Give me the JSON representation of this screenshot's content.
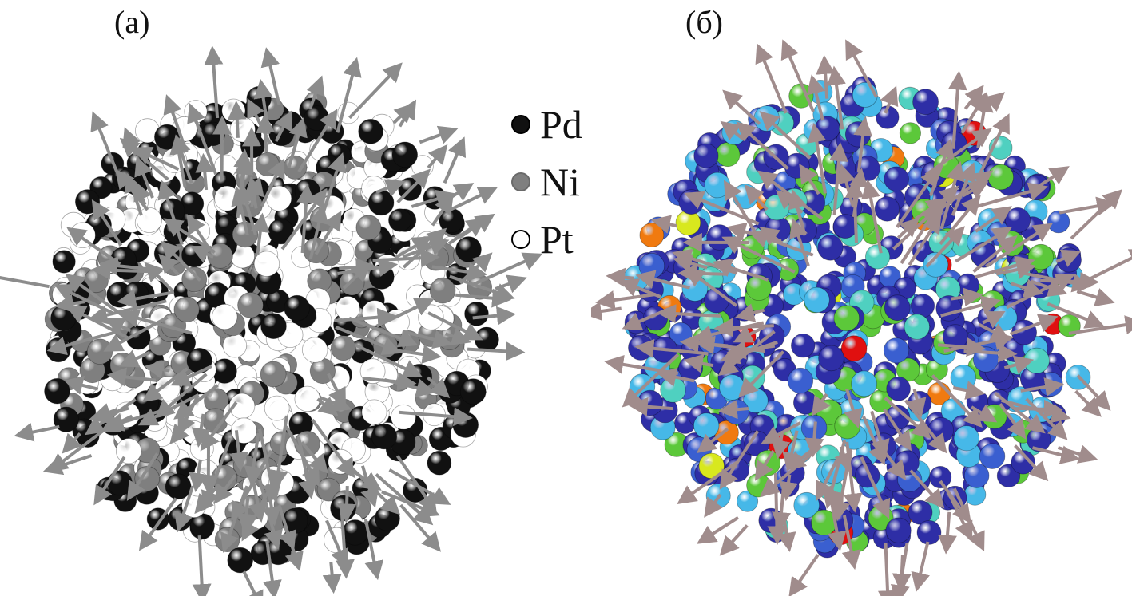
{
  "panels": [
    {
      "label": "(а)",
      "coloring": "element"
    },
    {
      "label": "(б)",
      "coloring": "value"
    }
  ],
  "legend": [
    {
      "label": "Pd",
      "color": "#111111",
      "border": "#000000"
    },
    {
      "label": "Ni",
      "color": "#7f7f7f",
      "border": "#6a6a6a"
    },
    {
      "label": "Pt",
      "color": "#ffffff",
      "border": "#000000"
    }
  ],
  "colors": {
    "arrow_a": "#8c8c8c",
    "arrow_b": "#a08c8c",
    "panel_b_palette": [
      "#2e2ea6",
      "#2e2ea6",
      "#2e2ea6",
      "#3a5fd0",
      "#46b8e8",
      "#4fd0c0",
      "#5cc83a",
      "#d8e81e",
      "#f07a10",
      "#e01010"
    ]
  }
}
